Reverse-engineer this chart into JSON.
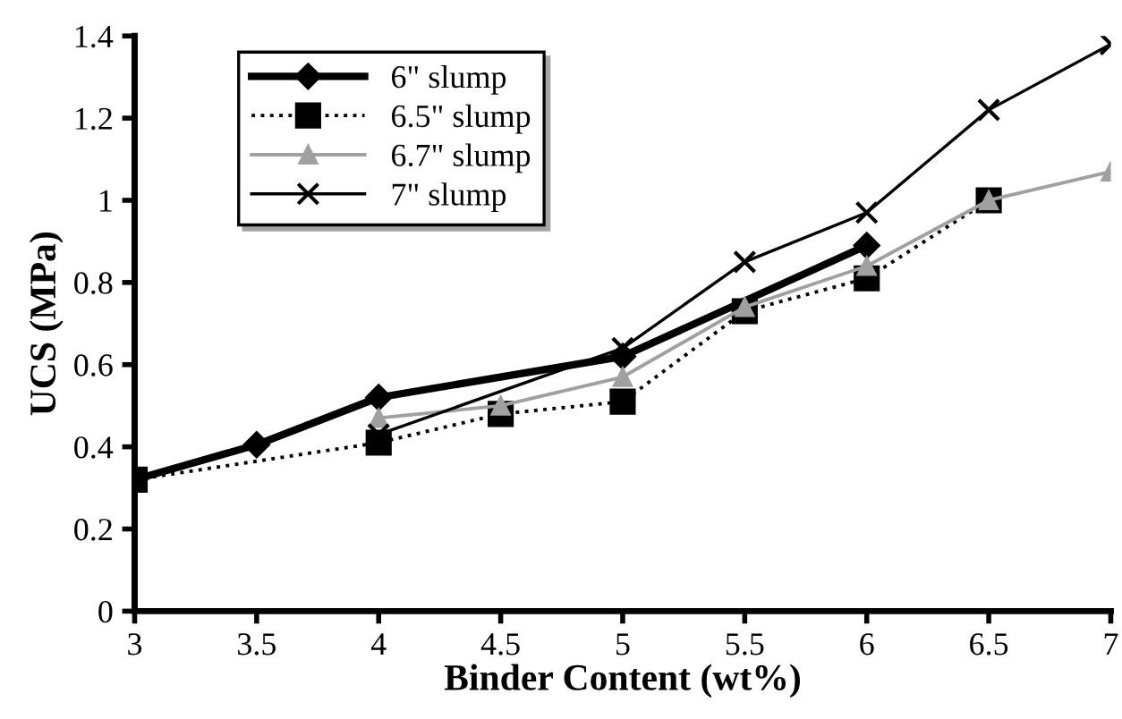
{
  "chart_data": {
    "type": "line",
    "xlabel": "Binder Content (wt%)",
    "ylabel": "UCS (MPa)",
    "xlim": [
      3,
      7
    ],
    "xticks": [
      3,
      3.5,
      4,
      4.5,
      5,
      5.5,
      6,
      6.5,
      7
    ],
    "ylim": [
      0,
      1.4
    ],
    "yticks": [
      0,
      0.2,
      0.4,
      0.6,
      0.8,
      1,
      1.2,
      1.4
    ],
    "grid": false,
    "legend": "top left",
    "series": [
      {
        "name": "6\" slump",
        "color": "#000000",
        "marker": "diamond",
        "line_style": "solid",
        "x": [
          3,
          3.5,
          4,
          5,
          6
        ],
        "values": [
          0.32,
          0.405,
          0.52,
          0.62,
          0.89
        ]
      },
      {
        "name": "6.5\" slump",
        "color": "#000000",
        "marker": "square",
        "line_style": "dotted",
        "x": [
          3,
          4,
          4.5,
          5,
          5.5,
          6,
          6.5
        ],
        "values": [
          0.32,
          0.41,
          0.48,
          0.51,
          0.73,
          0.81,
          1.0
        ]
      },
      {
        "name": "6.7\" slump",
        "color": "#a0a0a0",
        "marker": "triangle",
        "line_style": "solid",
        "x": [
          4,
          4.5,
          5,
          5.5,
          6,
          6.5,
          7
        ],
        "values": [
          0.47,
          0.5,
          0.57,
          0.74,
          0.84,
          1.0,
          1.07
        ]
      },
      {
        "name": "7\" slump",
        "color": "#000000",
        "marker": "cross",
        "line_style": "solid",
        "x": [
          4,
          5,
          5.5,
          6,
          6.5,
          7
        ],
        "values": [
          0.43,
          0.64,
          0.85,
          0.97,
          1.22,
          1.38
        ]
      }
    ]
  }
}
